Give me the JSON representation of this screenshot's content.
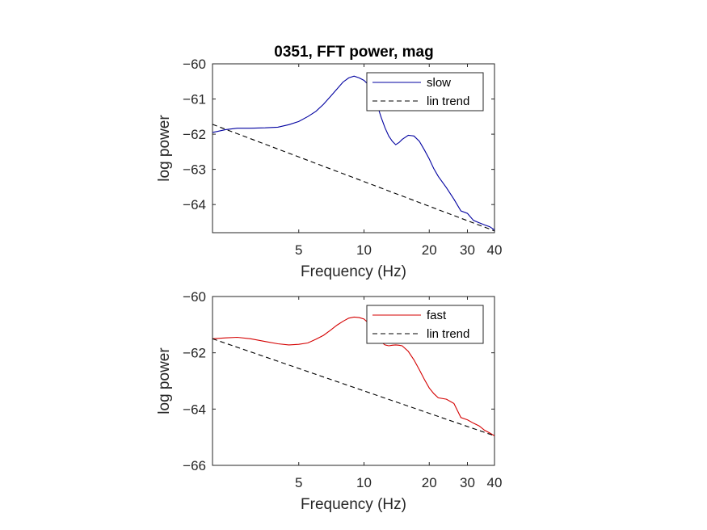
{
  "chart_data": [
    {
      "type": "line",
      "title": "0351, FFT power, mag",
      "xlabel": "Frequency (Hz)",
      "ylabel": "log power",
      "x_scale": "log",
      "xlim": [
        2,
        40
      ],
      "ylim": [
        -64.8,
        -60
      ],
      "xticks": [
        5,
        10,
        20,
        30,
        40
      ],
      "xtick_labels": [
        "5",
        "10",
        "20",
        "30",
        "40"
      ],
      "yticks": [
        -60,
        -61,
        -62,
        -63,
        -64
      ],
      "ytick_labels": [
        "−60",
        "−61",
        "−62",
        "−63",
        "−64"
      ],
      "grid": false,
      "legend_position": "top-right",
      "series": [
        {
          "name": "slow",
          "color": "#0000a0",
          "style": "solid",
          "x": [
            2.0,
            2.3,
            2.6,
            3.0,
            3.5,
            4.0,
            4.5,
            5.0,
            5.5,
            6.0,
            6.5,
            7.0,
            7.5,
            8.0,
            8.5,
            9.0,
            9.5,
            10.0,
            10.5,
            11.0,
            11.5,
            12.0,
            12.5,
            13.0,
            13.5,
            14.0,
            14.5,
            15.0,
            16.0,
            17.0,
            18.0,
            19.0,
            20.0,
            21.0,
            22.0,
            24.0,
            26.0,
            28.0,
            30.0,
            32.0,
            34.0,
            36.0,
            38.0,
            40.0
          ],
          "y": [
            -61.95,
            -61.87,
            -61.83,
            -61.83,
            -61.82,
            -61.8,
            -61.73,
            -61.64,
            -61.5,
            -61.35,
            -61.15,
            -60.93,
            -60.72,
            -60.52,
            -60.4,
            -60.35,
            -60.4,
            -60.47,
            -60.6,
            -60.85,
            -61.17,
            -61.52,
            -61.82,
            -62.05,
            -62.2,
            -62.3,
            -62.24,
            -62.15,
            -62.03,
            -62.05,
            -62.2,
            -62.45,
            -62.7,
            -62.98,
            -63.2,
            -63.52,
            -63.85,
            -64.18,
            -64.25,
            -64.45,
            -64.52,
            -64.58,
            -64.63,
            -64.72
          ]
        },
        {
          "name": "lin trend",
          "color": "#000000",
          "style": "dashed",
          "x": [
            2.0,
            40.0
          ],
          "y": [
            -61.72,
            -64.75
          ]
        }
      ]
    },
    {
      "type": "line",
      "title": "",
      "xlabel": "Frequency (Hz)",
      "ylabel": "log power",
      "x_scale": "log",
      "xlim": [
        2,
        40
      ],
      "ylim": [
        -66,
        -60
      ],
      "xticks": [
        5,
        10,
        20,
        30,
        40
      ],
      "xtick_labels": [
        "5",
        "10",
        "20",
        "30",
        "40"
      ],
      "yticks": [
        -60,
        -62,
        -64,
        -66
      ],
      "ytick_labels": [
        "−60",
        "−62",
        "−64",
        "−66"
      ],
      "grid": false,
      "legend_position": "top-right",
      "series": [
        {
          "name": "fast",
          "color": "#d40000",
          "style": "solid",
          "x": [
            2.0,
            2.3,
            2.6,
            3.0,
            3.5,
            4.0,
            4.5,
            5.0,
            5.5,
            6.0,
            6.5,
            7.0,
            7.5,
            8.0,
            8.5,
            9.0,
            9.5,
            10.0,
            10.5,
            11.0,
            11.5,
            12.0,
            12.5,
            13.0,
            13.5,
            14.0,
            14.5,
            15.0,
            16.0,
            17.0,
            18.0,
            19.0,
            20.0,
            21.0,
            22.0,
            24.0,
            26.0,
            28.0,
            30.0,
            32.0,
            34.0,
            36.0,
            38.0,
            40.0
          ],
          "y": [
            -61.5,
            -61.47,
            -61.45,
            -61.5,
            -61.6,
            -61.68,
            -61.72,
            -61.7,
            -61.65,
            -61.52,
            -61.38,
            -61.2,
            -61.02,
            -60.88,
            -60.77,
            -60.73,
            -60.75,
            -60.8,
            -60.95,
            -61.15,
            -61.4,
            -61.62,
            -61.72,
            -61.75,
            -61.73,
            -61.72,
            -61.73,
            -61.75,
            -61.95,
            -62.25,
            -62.6,
            -62.95,
            -63.25,
            -63.45,
            -63.6,
            -63.65,
            -63.8,
            -64.3,
            -64.38,
            -64.5,
            -64.6,
            -64.75,
            -64.85,
            -64.95
          ]
        },
        {
          "name": "lin trend",
          "color": "#000000",
          "style": "dashed",
          "x": [
            2.0,
            40.0
          ],
          "y": [
            -61.5,
            -64.95
          ]
        }
      ]
    }
  ]
}
